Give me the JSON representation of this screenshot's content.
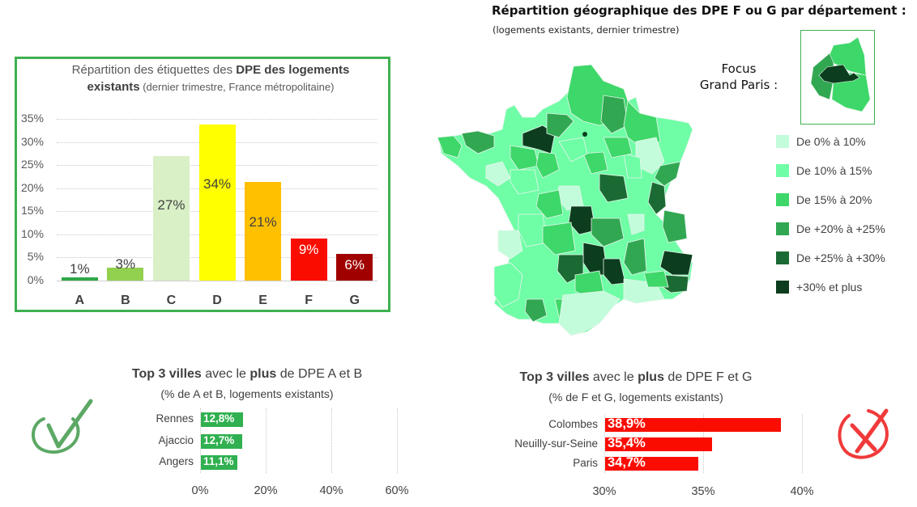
{
  "colors": {
    "frame": "#3fb04f",
    "legend": [
      "#c2fcdb",
      "#6ffda6",
      "#3ed769",
      "#31a751",
      "#1b6a33",
      "#0c3d1e"
    ],
    "good_bar": "#30b050",
    "bad_bar": "#fa0d00",
    "check": "#5ca865",
    "cross": "#f03a3a"
  },
  "dpe_chart": {
    "title_part1": "Répartition des étiquettes des ",
    "title_bold": "DPE des logements existants",
    "title_part2": " (dernier trimestre, France métropolitaine)"
  },
  "map": {
    "title": "Répartition géographique des DPE F ou G par département :",
    "subtitle": "(logements existants, dernier trimestre)",
    "focus_line1": "Focus",
    "focus_line2": "Grand Paris :",
    "legend": [
      {
        "label": "De 0% à 10%"
      },
      {
        "label": "De 10% à 15%"
      },
      {
        "label": "De 15% à 20%"
      },
      {
        "label": "De +20% à +25%"
      },
      {
        "label": "De +25% à +30%"
      },
      {
        "label": "+30% et plus"
      }
    ]
  },
  "top_ab": {
    "title_bold1": "Top 3 villes",
    "title_mid": " avec le ",
    "title_bold2": "plus",
    "title_end": " de DPE A et B",
    "subtitle": "(% de A et B, logements existants)"
  },
  "top_fg": {
    "title_bold1": "Top 3 villes",
    "title_mid": " avec le ",
    "title_bold2": "plus",
    "title_end": " de DPE F et G",
    "subtitle": "(% de F et G, logements existants)"
  },
  "chart_data": [
    {
      "type": "bar",
      "title": "Répartition des étiquettes des DPE des logements existants (dernier trimestre, France métropolitaine)",
      "categories": [
        "A",
        "B",
        "C",
        "D",
        "E",
        "F",
        "G"
      ],
      "values": [
        1,
        3,
        27,
        34,
        21,
        9,
        6
      ],
      "data_labels": [
        "1%",
        "3%",
        "27%",
        "34%",
        "21%",
        "9%",
        "6%"
      ],
      "bar_values_estimated": [
        0.7,
        2.8,
        27,
        33.7,
        21.3,
        9.1,
        5.8
      ],
      "bar_colors": [
        "#30a84a",
        "#92d050",
        "#d9f0c6",
        "#ffff00",
        "#ffc000",
        "#fa0d00",
        "#a00000"
      ],
      "label_colors": [
        "#404040",
        "#404040",
        "#404040",
        "#404040",
        "#404040",
        "#ffffff",
        "#ffffff"
      ],
      "yticks": [
        "0%",
        "5%",
        "10%",
        "15%",
        "20%",
        "25%",
        "30%",
        "35%"
      ],
      "ylim": [
        0,
        35
      ],
      "xlabel": "",
      "ylabel": "",
      "grid": true
    },
    {
      "type": "bar",
      "orientation": "horizontal",
      "title": "Top 3 villes avec le plus de DPE A et B",
      "subtitle": "(% de A et B, logements existants)",
      "categories": [
        "Rennes",
        "Ajaccio",
        "Angers"
      ],
      "values": [
        12.8,
        12.7,
        11.1
      ],
      "data_labels": [
        "12,8%",
        "12,7%",
        "11,1%"
      ],
      "xticks": [
        "0%",
        "20%",
        "40%",
        "60%"
      ],
      "xlim": [
        0,
        60
      ],
      "grid": true
    },
    {
      "type": "bar",
      "orientation": "horizontal",
      "title": "Top 3 villes avec le plus de DPE F et G",
      "subtitle": "(% de F et G, logements existants)",
      "categories": [
        "Colombes",
        "Neuilly-sur-Seine",
        "Paris"
      ],
      "values": [
        38.9,
        35.4,
        34.7
      ],
      "data_labels": [
        "38,9%",
        "35,4%",
        "34,7%"
      ],
      "xticks": [
        "30%",
        "35%",
        "40%"
      ],
      "xlim": [
        30,
        40
      ],
      "grid": true
    }
  ]
}
